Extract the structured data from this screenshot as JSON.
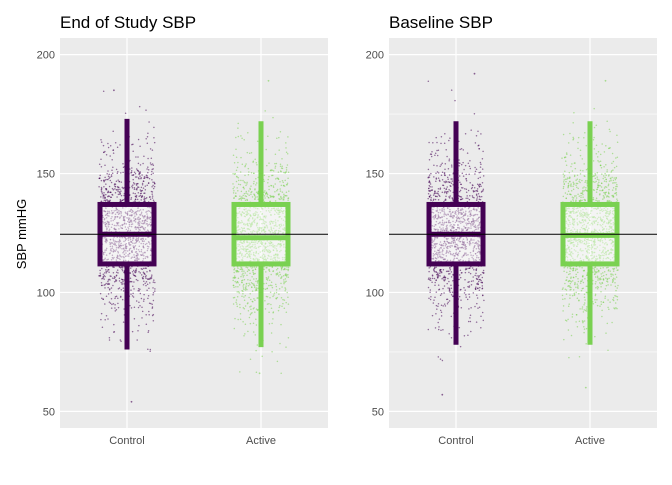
{
  "colors": {
    "panel_bg": "#ebebeb",
    "grid": "#ffffff",
    "control": "#440154",
    "active": "#7ad151",
    "reference_line": "#000000",
    "tick_text": "#4d4d4d"
  },
  "shared": {
    "ylabel": "SBP mmHG",
    "ylim": [
      43,
      207
    ],
    "yticks": [
      50,
      100,
      150,
      200
    ],
    "ytick_labels": [
      "50",
      "100",
      "150",
      "200"
    ],
    "categories": [
      "Control",
      "Active"
    ],
    "reference_y": 124.5
  },
  "chart_data": [
    {
      "type": "box",
      "title": "End of Study SBP",
      "xlabel": "",
      "ylabel": "SBP mmHG",
      "ylim": [
        43,
        207
      ],
      "categories": [
        "Control",
        "Active"
      ],
      "grid": true,
      "reference_line_y": 124.5,
      "series": [
        {
          "category": "Control",
          "whisker_low": 76,
          "q1": 112,
          "median": 124.5,
          "q3": 137,
          "whisker_high": 173,
          "points_min": 54,
          "points_max": 185
        },
        {
          "category": "Active",
          "whisker_low": 77,
          "q1": 112,
          "median": 123,
          "q3": 137,
          "whisker_high": 172,
          "points_min": 66,
          "points_max": 189
        }
      ]
    },
    {
      "type": "box",
      "title": "Baseline SBP",
      "xlabel": "",
      "ylabel": "",
      "ylim": [
        43,
        207
      ],
      "categories": [
        "Control",
        "Active"
      ],
      "grid": true,
      "reference_line_y": 124.5,
      "series": [
        {
          "category": "Control",
          "whisker_low": 78,
          "q1": 112,
          "median": 124.5,
          "q3": 137,
          "whisker_high": 172,
          "points_min": 57,
          "points_max": 192
        },
        {
          "category": "Active",
          "whisker_low": 78,
          "q1": 112,
          "median": 124,
          "q3": 137,
          "whisker_high": 172,
          "points_min": 60,
          "points_max": 189
        }
      ]
    }
  ]
}
